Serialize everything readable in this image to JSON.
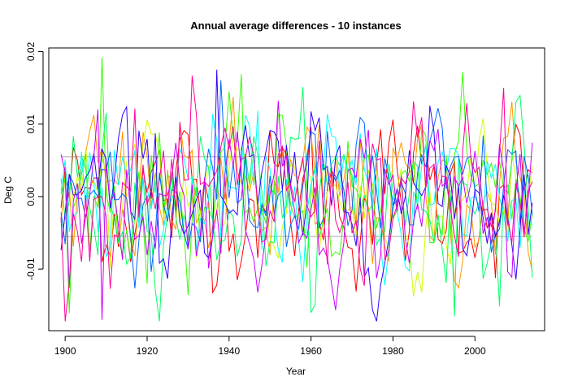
{
  "chart_data": {
    "type": "line",
    "title": "Annual average differences - 10 instances",
    "xlabel": "Year",
    "ylabel": "Deg C",
    "xlim": [
      1896,
      2017
    ],
    "ylim": [
      -0.0185,
      0.0205
    ],
    "x_ticks": [
      1900,
      1920,
      1940,
      1960,
      1980,
      2000
    ],
    "x_tick_labels": [
      "1900",
      "1920",
      "1940",
      "1960",
      "1980",
      "2000"
    ],
    "y_ticks": [
      -0.01,
      0.0,
      0.01,
      0.02
    ],
    "y_tick_labels": [
      "-0.01",
      "0.00",
      "0.01",
      "0.02"
    ],
    "x_start": 1899,
    "x_end": 2014,
    "grid": false,
    "legend": "none",
    "reference_lines": [
      {
        "y": 0.0055,
        "color": "#a6a6a6"
      },
      {
        "y": -0.0055,
        "color": "#a6a6a6"
      }
    ],
    "series_colors": [
      "#ff0000",
      "#ff9900",
      "#ccff00",
      "#33ff00",
      "#00ff66",
      "#00ffff",
      "#0066ff",
      "#3300ff",
      "#cc00ff",
      "#ff0099"
    ],
    "series_amplitude": 0.0055,
    "series_peak_extremes": [
      {
        "series_index": 3,
        "x": 1909,
        "y": 0.0192
      },
      {
        "series_index": 7,
        "x": 1937,
        "y": 0.0175
      },
      {
        "series_index": 8,
        "x": 1909,
        "y": -0.017
      },
      {
        "series_index": 4,
        "x": 1995,
        "y": -0.0165
      },
      {
        "series_index": 9,
        "x": 2007,
        "y": 0.015
      }
    ]
  }
}
